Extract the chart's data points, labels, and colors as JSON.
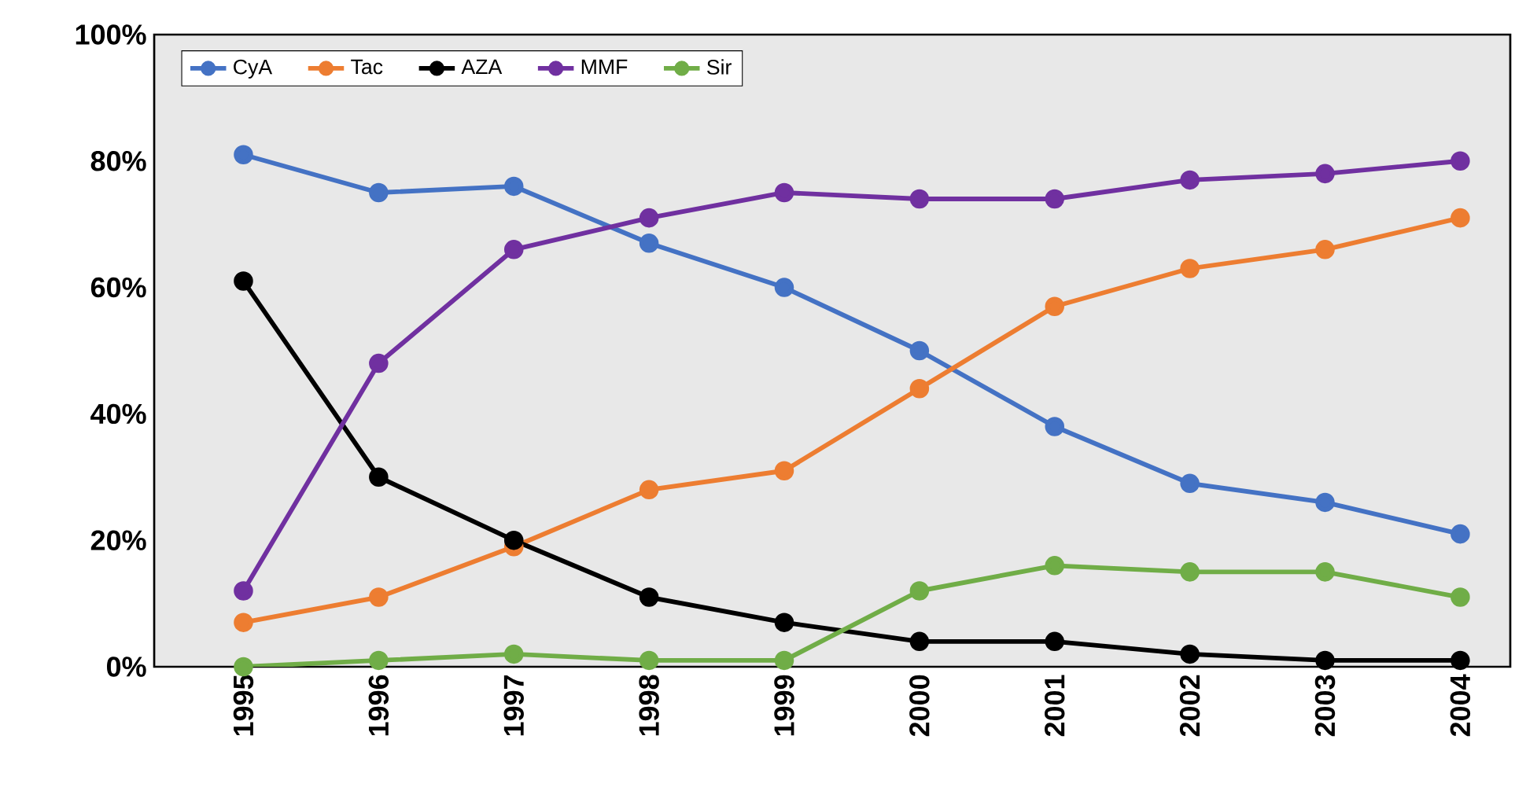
{
  "chart_data": {
    "type": "line",
    "categories": [
      "1995",
      "1996",
      "1997",
      "1998",
      "1999",
      "2000",
      "2001",
      "2002",
      "2003",
      "2004"
    ],
    "series": [
      {
        "name": "CyA",
        "color": "#4472c4",
        "values": [
          81,
          75,
          76,
          67,
          60,
          50,
          38,
          29,
          26,
          21
        ]
      },
      {
        "name": "Tac",
        "color": "#ed7d31",
        "values": [
          7,
          11,
          19,
          28,
          31,
          44,
          57,
          63,
          66,
          71
        ]
      },
      {
        "name": "AZA",
        "color": "#000000",
        "values": [
          61,
          30,
          20,
          11,
          7,
          4,
          4,
          2,
          1,
          1
        ]
      },
      {
        "name": "MMF",
        "color": "#7030a0",
        "values": [
          12,
          48,
          66,
          71,
          75,
          74,
          74,
          77,
          78,
          80
        ]
      },
      {
        "name": "Sir",
        "color": "#70ad47",
        "values": [
          0,
          1,
          2,
          1,
          1,
          12,
          16,
          15,
          15,
          11
        ]
      }
    ],
    "ylim": [
      0,
      100
    ],
    "yticks": [
      {
        "value": 0,
        "label": "0%"
      },
      {
        "value": 20,
        "label": "20%"
      },
      {
        "value": 40,
        "label": "40%"
      },
      {
        "value": 60,
        "label": "60%"
      },
      {
        "value": 80,
        "label": "80%"
      },
      {
        "value": 100,
        "label": "100%"
      }
    ],
    "grid": false,
    "legend": "top left",
    "marker": "circle",
    "line_style": "solid"
  }
}
